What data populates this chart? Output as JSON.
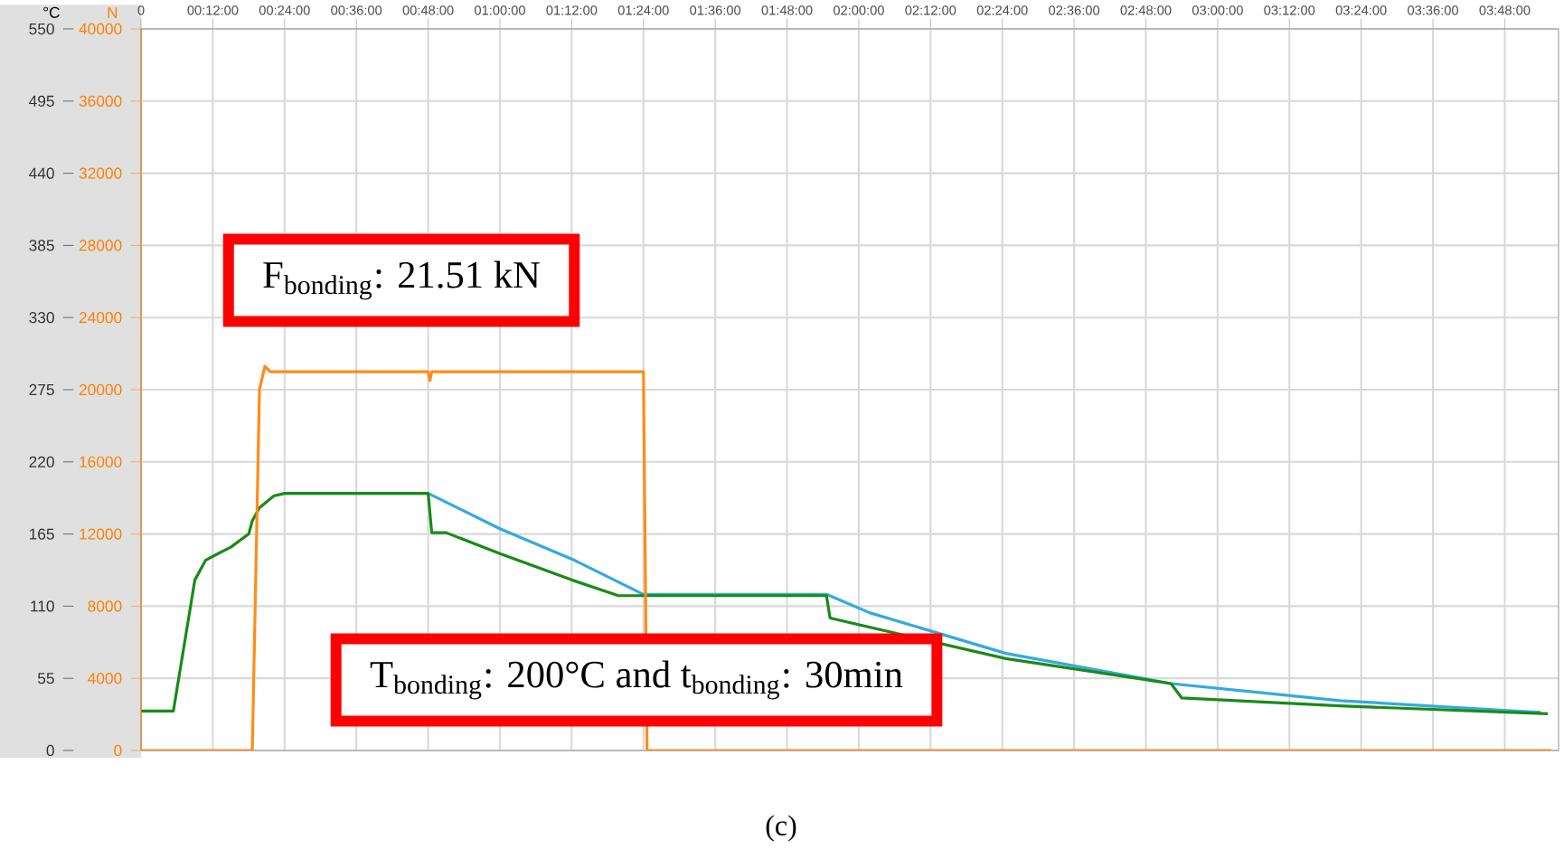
{
  "chart_data": {
    "type": "line",
    "ylabel": "°C",
    "y2label": "N",
    "xlim": [
      0,
      3.95
    ],
    "ylim": [
      0,
      550
    ],
    "y2lim": [
      0,
      40000
    ],
    "xticks": [
      0,
      {
        "value": 0.2,
        "label": "00:12:00"
      },
      {
        "value": 0.4,
        "label": "00:24:00"
      },
      {
        "value": 0.6,
        "label": "00:36:00"
      },
      {
        "value": 0.8,
        "label": "00:48:00"
      },
      {
        "value": 1.0,
        "label": "01:00:00"
      },
      {
        "value": 1.2,
        "label": "01:12:00"
      },
      {
        "value": 1.4,
        "label": "01:24:00"
      },
      {
        "value": 1.6,
        "label": "01:36:00"
      },
      {
        "value": 1.8,
        "label": "01:48:00"
      },
      {
        "value": 2.0,
        "label": "02:00:00"
      },
      {
        "value": 2.2,
        "label": "02:12:00"
      },
      {
        "value": 2.4,
        "label": "02:24:00"
      },
      {
        "value": 2.6,
        "label": "02:36:00"
      },
      {
        "value": 2.8,
        "label": "02:48:00"
      },
      {
        "value": 3.0,
        "label": "03:00:00"
      },
      {
        "value": 3.2,
        "label": "03:12:00"
      },
      {
        "value": 3.4,
        "label": "03:24:00"
      },
      {
        "value": 3.6,
        "label": "03:36:00"
      },
      {
        "value": 3.8,
        "label": "03:48:00"
      }
    ],
    "yticks": [
      0,
      55,
      110,
      165,
      220,
      275,
      330,
      385,
      440,
      495,
      550
    ],
    "y2ticks": [
      0,
      4000,
      8000,
      12000,
      16000,
      20000,
      24000,
      28000,
      32000,
      36000,
      40000
    ],
    "grid": true,
    "marker": "none",
    "line_style": "solid",
    "series": [
      {
        "color": "#33aadd",
        "x": [
          0.4,
          0.8,
          1.0,
          1.2,
          1.4,
          1.91,
          2.03,
          2.41,
          2.87,
          3.34,
          3.83,
          3.9
        ],
        "values": [
          196,
          196,
          169,
          146,
          119,
          119,
          105,
          74,
          51,
          38,
          30,
          29
        ]
      },
      {
        "color": "#1a8a1a",
        "x": [
          0,
          0.09,
          0.12,
          0.15,
          0.18,
          0.2,
          0.25,
          0.3,
          0.31,
          0.33,
          0.37,
          0.4,
          0.8,
          0.81,
          0.85,
          1.0,
          1.2,
          1.33,
          1.91,
          1.92,
          2.41,
          2.87,
          2.9,
          3.34,
          3.92
        ],
        "values": [
          30,
          30,
          80,
          130,
          145,
          148,
          155,
          165,
          175,
          185,
          194,
          196,
          196,
          166,
          166,
          150,
          130,
          118,
          118,
          101,
          70,
          51,
          40,
          34,
          28
        ]
      },
      {
        "color": "#ff8c1a",
        "axis": "y2",
        "x": [
          0,
          0.31,
          0.33,
          0.345,
          0.36,
          0.8,
          0.805,
          0.81,
          1.4,
          1.41,
          3.93
        ],
        "values": [
          0,
          0,
          20000,
          21300,
          21000,
          21000,
          20500,
          21000,
          21000,
          0,
          0
        ]
      }
    ],
    "annotations": [
      "F$_{bonding}$: 21.51 kN",
      "T$_{bonding}$: 200°C and t$_{bonding}$: 30min",
      "(c)"
    ]
  }
}
